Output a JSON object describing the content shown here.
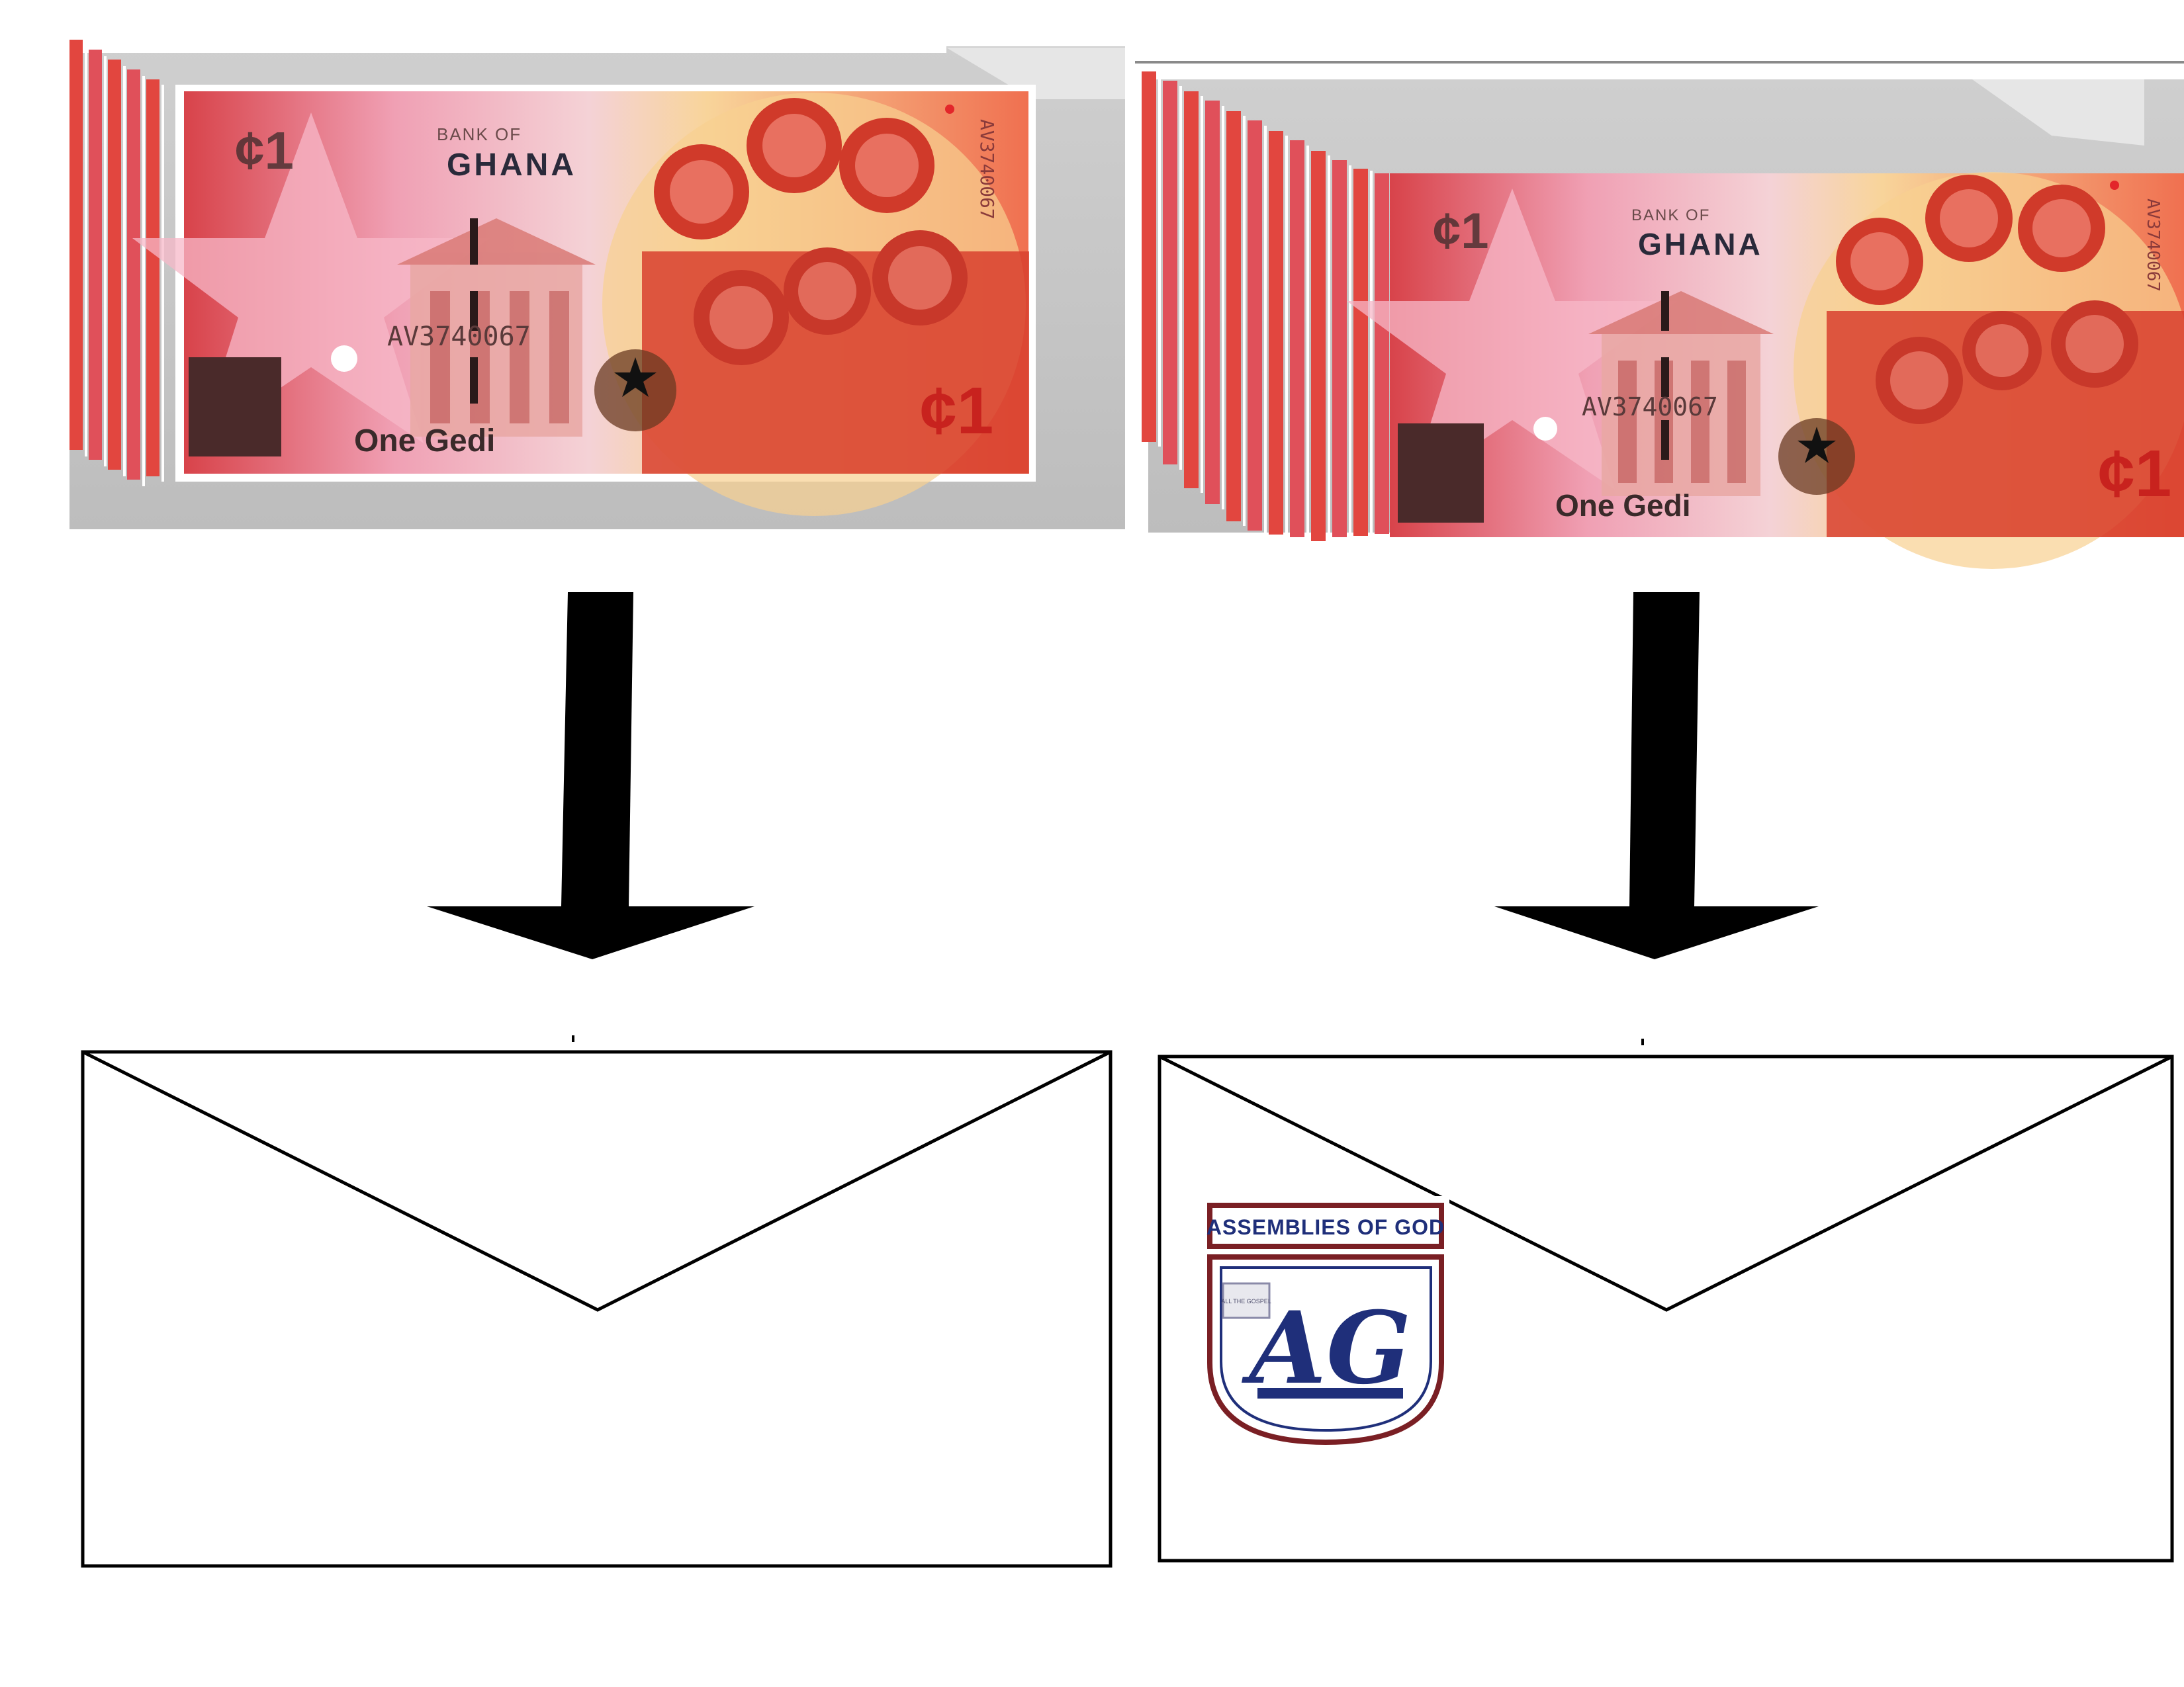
{
  "diagram": {
    "left": {
      "note": {
        "bank": "BANK OF",
        "country": "GHANA",
        "denomination_words": "One Gedi",
        "symbol": "¢1",
        "serial": "AV3740067",
        "serial_vertical": "AV3740067"
      },
      "envelope": {
        "has_logo": false
      }
    },
    "right": {
      "note": {
        "bank": "BANK OF",
        "country": "GHANA",
        "denomination_words": "One Gedi",
        "symbol": "¢1",
        "serial": "AV3740067",
        "serial_vertical": "AV3740067"
      },
      "envelope": {
        "has_logo": true,
        "logo_banner": "ASSEMBLIES OF GOD",
        "logo_monogram": "AG",
        "logo_book_text": "ALL THE GOSPEL"
      }
    }
  },
  "colors": {
    "note_red": "#e2463f",
    "note_pink": "#f2a0b0",
    "note_yellow": "#f8d090",
    "stack_gray": "#c8c8c8",
    "arrow": "#000000",
    "logo_navy": "#1f2f7a",
    "logo_maroon": "#7a1f24"
  }
}
